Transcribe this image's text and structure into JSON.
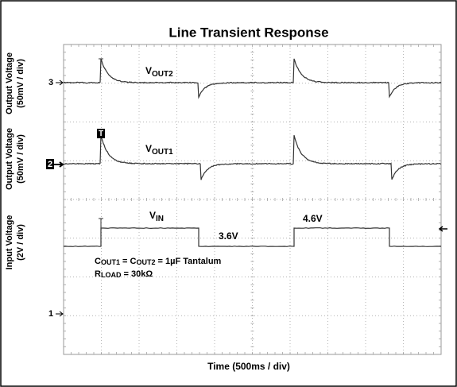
{
  "title": "Line Transient Response",
  "y_labels": [
    {
      "line1": "Output Voltage",
      "line2": "(50mV / div)"
    },
    {
      "line1": "Output Voltage",
      "line2": "(50mV / div)"
    },
    {
      "line1": "Input Voltage",
      "line2": "(2V / div)"
    }
  ],
  "x_label": "Time (500ms / div)",
  "channel_markers": [
    "3",
    "2",
    "1"
  ],
  "trigger_marker": "T",
  "trace_labels": [
    {
      "main": "V",
      "sub": "OUT2"
    },
    {
      "main": "V",
      "sub": "OUT1"
    },
    {
      "main": "V",
      "sub": "IN"
    }
  ],
  "annotations": [
    "3.6V",
    "4.6V"
  ],
  "conditions": [
    {
      "c1": "C",
      "s1": "OUT1",
      "mid": " = C",
      "s2": "OUT2",
      "rest": " = 1µF Tantalum"
    },
    {
      "c1": "R",
      "s1": "LOAD",
      "rest": " = 30kΩ"
    }
  ]
}
